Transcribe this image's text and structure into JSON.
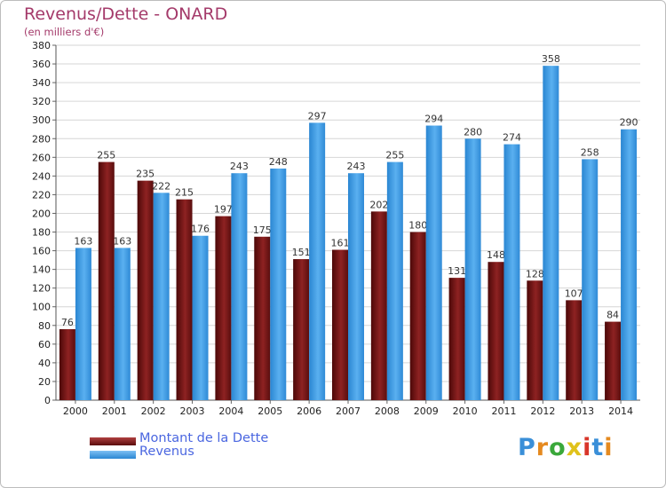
{
  "title": "Revenus/Dette - ONARD",
  "subtitle": "(en milliers d'€)",
  "colors": {
    "dette": "#7a1818",
    "revenus": "#3e9ee6",
    "title": "#a43a6a",
    "legend_text": "#4a66e0"
  },
  "chart_data": {
    "type": "bar",
    "title": "Revenus/Dette - ONARD",
    "subtitle": "(en milliers d'€)",
    "categories": [
      "2000",
      "2001",
      "2002",
      "2003",
      "2004",
      "2005",
      "2006",
      "2007",
      "2008",
      "2009",
      "2010",
      "2011",
      "2012",
      "2013",
      "2014"
    ],
    "series": [
      {
        "name": "Montant de la Dette",
        "values": [
          76,
          255,
          235,
          215,
          197,
          175,
          151,
          161,
          202,
          180,
          131,
          148,
          128,
          107,
          84
        ]
      },
      {
        "name": "Revenus",
        "values": [
          163,
          163,
          222,
          176,
          243,
          248,
          297,
          243,
          255,
          294,
          280,
          274,
          358,
          258,
          290
        ]
      }
    ],
    "ylim": [
      0,
      380
    ],
    "ytick_step": 20,
    "grid": true,
    "legend_position": "bottom-left"
  },
  "legend": {
    "dette_label": "Montant de la Dette",
    "revenus_label": "Revenus"
  },
  "logo": {
    "letters": [
      "P",
      "r",
      "o",
      "x",
      "i",
      "t",
      "i"
    ],
    "colors": [
      "#3a8fd8",
      "#e58a1f",
      "#3aa83a",
      "#e0c21a",
      "#d8352a",
      "#3a8fd8",
      "#e58a1f"
    ]
  }
}
